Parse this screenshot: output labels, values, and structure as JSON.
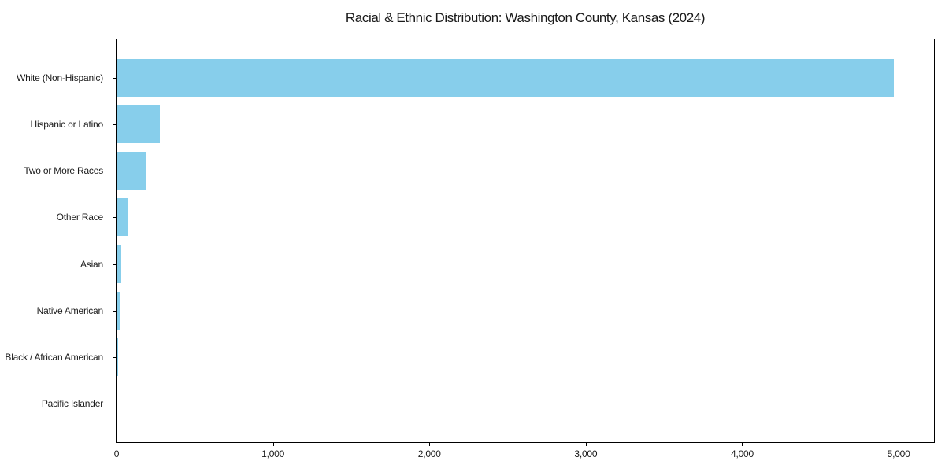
{
  "chart_data": {
    "type": "bar",
    "orientation": "horizontal",
    "title": "Racial & Ethnic Distribution: Washington County, Kansas (2024)",
    "categories": [
      "White (Non-Hispanic)",
      "Hispanic or Latino",
      "Two or More Races",
      "Other Race",
      "Asian",
      "Native American",
      "Black / African American",
      "Pacific Islander"
    ],
    "values": [
      4970,
      275,
      185,
      70,
      30,
      25,
      8,
      2
    ],
    "xlabel": "",
    "ylabel": "",
    "xlim": [
      0,
      5226
    ],
    "x_ticks": [
      0,
      1000,
      2000,
      3000,
      4000,
      5000
    ],
    "x_tick_labels": [
      "0",
      "1,000",
      "2,000",
      "3,000",
      "4,000",
      "5,000"
    ],
    "bar_color": "#87CEEB",
    "frame_color": "#000000",
    "grid": false,
    "legend": null
  }
}
